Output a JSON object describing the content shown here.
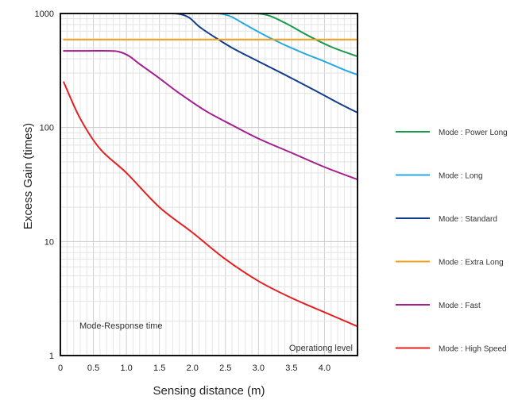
{
  "chart_data": {
    "type": "line",
    "xlabel": "Sensing distance (m)",
    "ylabel": "Excess Gain (times)",
    "xlim": [
      0,
      4.5
    ],
    "ylim": [
      1,
      1000
    ],
    "y_scale": "log",
    "grid": true,
    "x_ticks": [
      "0",
      "0.5",
      "1.0",
      "1.5",
      "2.0",
      "2.5",
      "3.0",
      "3.5",
      "4.0"
    ],
    "y_ticks": [
      "1",
      "10",
      "100",
      "1000"
    ],
    "annotations": {
      "bottom_left": "Mode-Response time",
      "bottom_right": "Operationg level"
    },
    "legend_position": "right",
    "series": [
      {
        "name": "Mode : Power Long",
        "color": "#1a9a4a",
        "x": [
          2.9,
          3.05,
          3.2,
          3.45,
          3.75,
          4.1,
          4.4,
          4.5
        ],
        "y": [
          1000,
          990,
          940,
          800,
          640,
          510,
          440,
          420
        ]
      },
      {
        "name": "Mode : Long",
        "color": "#29a8e0",
        "x": [
          2.35,
          2.45,
          2.6,
          2.85,
          3.2,
          3.6,
          4.0,
          4.3,
          4.5
        ],
        "y": [
          1000,
          990,
          930,
          770,
          600,
          470,
          380,
          320,
          290
        ]
      },
      {
        "name": "Mode : Standard",
        "color": "#123c8c",
        "x": [
          1.3,
          1.6,
          1.8,
          1.95,
          2.1,
          2.3,
          2.6,
          3.0,
          3.4,
          3.8,
          4.2,
          4.5
        ],
        "y": [
          1000,
          1000,
          990,
          920,
          770,
          640,
          500,
          380,
          290,
          220,
          165,
          135
        ]
      },
      {
        "name": "Mode : Extra Long",
        "color": "#f0a21e",
        "x": [
          0.05,
          4.5
        ],
        "y": [
          590,
          590
        ]
      },
      {
        "name": "Mode : Fast",
        "color": "#a51d8e",
        "x": [
          0.05,
          0.4,
          0.75,
          0.9,
          1.05,
          1.2,
          1.5,
          1.8,
          2.2,
          2.6,
          3.0,
          3.5,
          4.0,
          4.5
        ],
        "y": [
          470,
          470,
          470,
          460,
          420,
          360,
          270,
          200,
          140,
          105,
          80,
          60,
          45,
          35
        ]
      },
      {
        "name": "Mode : High Speed",
        "color": "#e41f1f",
        "x": [
          0.05,
          0.3,
          0.6,
          1.0,
          1.5,
          2.0,
          2.5,
          3.0,
          3.5,
          4.0,
          4.5
        ],
        "y": [
          250,
          120,
          65,
          40,
          20,
          12,
          7,
          4.5,
          3.2,
          2.4,
          1.8
        ]
      }
    ]
  }
}
